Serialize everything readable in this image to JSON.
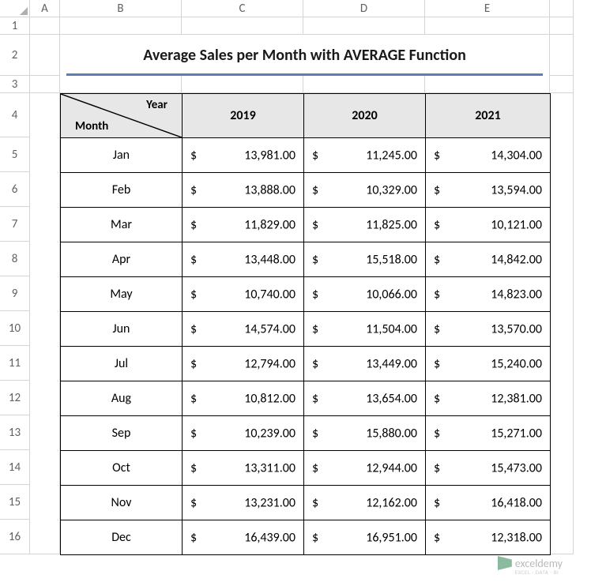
{
  "title": "Average Sales per Month with AVERAGE Function",
  "columns": {
    "A": 38,
    "B": 154,
    "C": 154,
    "D": 154,
    "E": 158,
    "F": 30
  },
  "row_heights": {
    "1": 22,
    "2": 52,
    "3": 22,
    "4": 56,
    "data": 44
  },
  "col_labels": [
    "A",
    "B",
    "C",
    "D",
    "E"
  ],
  "diag_header": {
    "top": "Year",
    "bottom": "Month"
  },
  "year_headers": [
    "2019",
    "2020",
    "2021"
  ],
  "months": [
    "Jan",
    "Feb",
    "Mar",
    "Apr",
    "May",
    "Jun",
    "Jul",
    "Aug",
    "Sep",
    "Oct",
    "Nov",
    "Dec"
  ],
  "data": [
    [
      "13,981.00",
      "11,245.00",
      "14,304.00"
    ],
    [
      "13,888.00",
      "10,329.00",
      "13,594.00"
    ],
    [
      "11,829.00",
      "11,825.00",
      "10,121.00"
    ],
    [
      "13,448.00",
      "15,518.00",
      "14,842.00"
    ],
    [
      "10,740.00",
      "10,066.00",
      "14,823.00"
    ],
    [
      "14,574.00",
      "11,504.00",
      "13,570.00"
    ],
    [
      "12,794.00",
      "13,449.00",
      "15,240.00"
    ],
    [
      "10,812.00",
      "13,654.00",
      "12,381.00"
    ],
    [
      "10,239.00",
      "15,880.00",
      "15,271.00"
    ],
    [
      "13,311.00",
      "12,944.00",
      "15,473.00"
    ],
    [
      "13,231.00",
      "12,162.00",
      "16,418.00"
    ],
    [
      "16,439.00",
      "16,951.00",
      "12,318.00"
    ]
  ],
  "colors": {
    "grid": "#d4d4d4",
    "header_text": "#616161",
    "table_border": "#000000",
    "header_bg": "#e7e7e7",
    "underline": "#5b7fb5",
    "watermark_icon": "#1a7a3f",
    "watermark_text": "#757575"
  },
  "watermark": {
    "brand": "exceldemy",
    "tagline": "EXCEL · DATA · BI"
  }
}
